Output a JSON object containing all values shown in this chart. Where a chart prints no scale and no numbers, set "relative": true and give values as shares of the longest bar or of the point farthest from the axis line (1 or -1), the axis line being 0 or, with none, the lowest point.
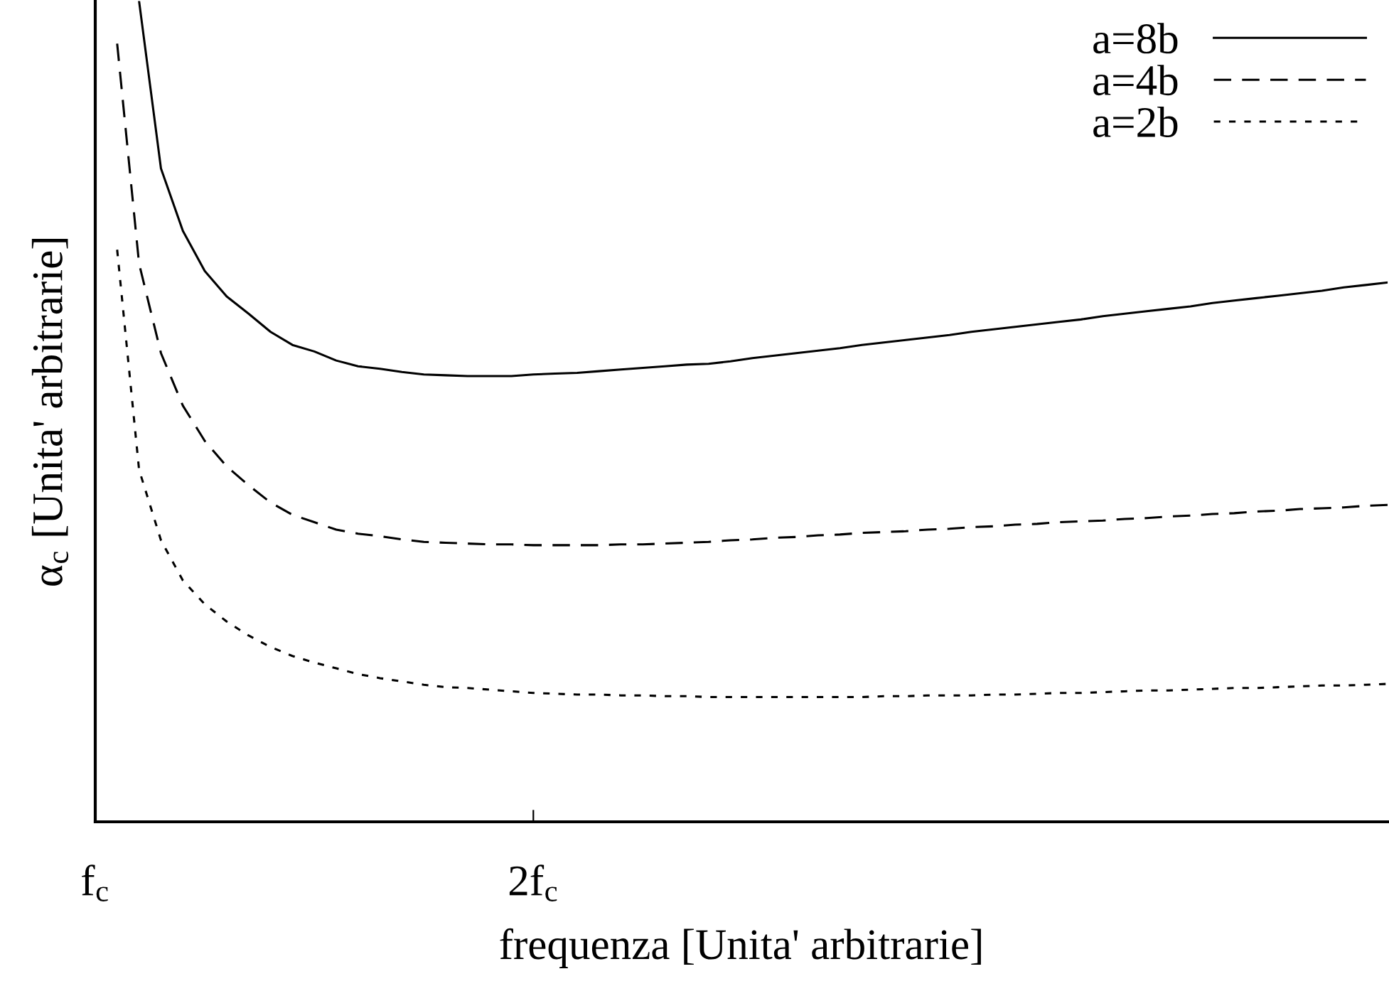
{
  "chart_data": {
    "type": "line",
    "relative": true,
    "xlabel": "frequenza [Unita' arbitrarie]",
    "ylabel": "α$_{c}$ [Unita' arbitrarie]",
    "categories": [
      "f$_{c}$",
      null,
      null,
      null,
      null,
      null,
      null,
      null,
      null,
      null,
      null,
      null,
      null,
      null,
      null,
      null,
      null,
      null,
      null,
      null,
      "2f$_{c}$",
      null,
      null,
      null,
      null,
      null,
      null,
      null,
      null,
      null,
      null,
      null,
      null,
      null,
      null,
      null,
      null,
      null,
      null,
      null,
      null,
      null,
      null,
      null,
      null,
      null,
      null,
      null,
      null,
      null,
      null,
      null,
      null,
      null,
      null,
      null,
      null,
      null,
      null,
      null
    ],
    "tick_labels": "x",
    "legend": "top right",
    "series": [
      {
        "name": "a=8b",
        "color": "#000000",
        "line_style": "solid",
        "values": [
          null,
          null,
          1.0,
          0.796,
          0.72,
          0.671,
          0.64,
          0.619,
          0.597,
          0.581,
          0.573,
          0.562,
          0.555,
          0.552,
          0.548,
          0.545,
          0.544,
          0.543,
          0.543,
          0.543,
          0.545,
          0.546,
          0.547,
          0.549,
          0.551,
          0.553,
          0.555,
          0.557,
          0.558,
          0.561,
          0.565,
          0.568,
          0.571,
          0.574,
          0.577,
          0.581,
          0.584,
          0.587,
          0.59,
          0.593,
          0.597,
          0.6,
          0.603,
          0.606,
          0.609,
          0.612,
          0.616,
          0.619,
          0.622,
          0.625,
          0.628,
          0.632,
          0.635,
          0.638,
          0.641,
          0.644,
          0.647,
          0.651,
          0.654,
          0.657
        ]
      },
      {
        "name": "a=4b",
        "color": "#000000",
        "line_style": "dashed",
        "values": [
          null,
          0.948,
          0.68,
          0.571,
          0.507,
          0.464,
          0.433,
          0.41,
          0.389,
          0.374,
          0.365,
          0.356,
          0.351,
          0.348,
          0.344,
          0.341,
          0.34,
          0.339,
          0.338,
          0.338,
          0.337,
          0.337,
          0.337,
          0.337,
          0.338,
          0.338,
          0.339,
          0.34,
          0.341,
          0.343,
          0.344,
          0.346,
          0.347,
          0.349,
          0.35,
          0.352,
          0.353,
          0.354,
          0.356,
          0.357,
          0.359,
          0.36,
          0.362,
          0.363,
          0.365,
          0.366,
          0.367,
          0.369,
          0.37,
          0.372,
          0.373,
          0.375,
          0.376,
          0.378,
          0.379,
          0.381,
          0.382,
          0.383,
          0.385,
          0.386
        ]
      },
      {
        "name": "a=2b",
        "color": "#000000",
        "line_style": "dotted",
        "values": [
          null,
          0.697,
          0.429,
          0.343,
          0.294,
          0.265,
          0.244,
          0.227,
          0.213,
          0.202,
          0.194,
          0.187,
          0.18,
          0.175,
          0.171,
          0.167,
          0.164,
          0.163,
          0.161,
          0.159,
          0.157,
          0.156,
          0.155,
          0.155,
          0.154,
          0.154,
          0.153,
          0.153,
          0.152,
          0.152,
          0.152,
          0.152,
          0.152,
          0.152,
          0.152,
          0.152,
          0.153,
          0.153,
          0.154,
          0.154,
          0.154,
          0.155,
          0.155,
          0.156,
          0.157,
          0.157,
          0.158,
          0.159,
          0.16,
          0.16,
          0.161,
          0.162,
          0.163,
          0.163,
          0.164,
          0.165,
          0.166,
          0.166,
          0.167,
          0.168
        ]
      }
    ]
  }
}
